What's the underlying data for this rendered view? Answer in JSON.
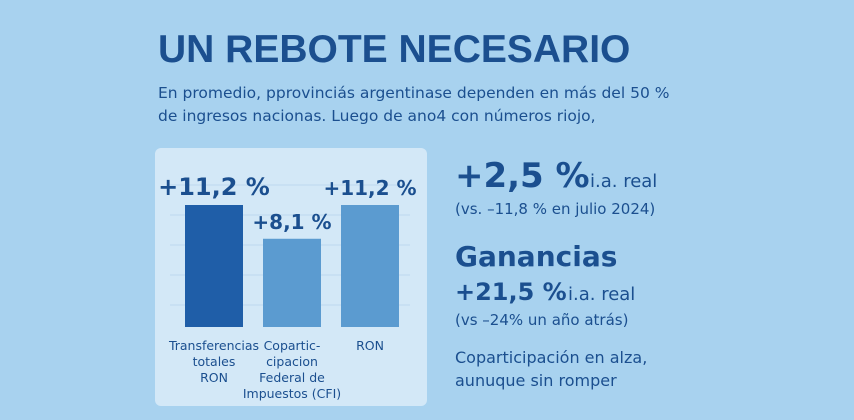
{
  "header": {
    "title": "UN REBOTE NECESARIO",
    "subtitle": [
      "En promedio, pprovinciás argentinase dependen en más del 50 %",
      "de ingresos nacionas. Luego de ano4 con números riojo,"
    ]
  },
  "chart_data": {
    "type": "bar",
    "categories": [
      [
        "Transferencias",
        "totales",
        "RON"
      ],
      [
        "Copartic-",
        "cipacion",
        "Federal de",
        "Impuestos (CFI)"
      ],
      [
        "RON"
      ]
    ],
    "values": [
      11.2,
      8.1,
      11.2
    ],
    "value_labels": [
      "+11,2 %",
      "+8,1 %",
      "+11,2 %"
    ],
    "colors": [
      "#1f5ea8",
      "#5b9bd0",
      "#5b9bd0"
    ]
  },
  "stats": [
    {
      "value": "+2,5 %",
      "unit": "i.a. real",
      "note": "(vs. –11,8 % en julio 2024)"
    },
    {
      "heading": "Ganancias",
      "value": "+21,5 %",
      "unit": "i.a. real",
      "note": "(vs –24% un año atrás)"
    }
  ],
  "footer": [
    "Coparticipación en alza,",
    "aunuque sin romper"
  ]
}
